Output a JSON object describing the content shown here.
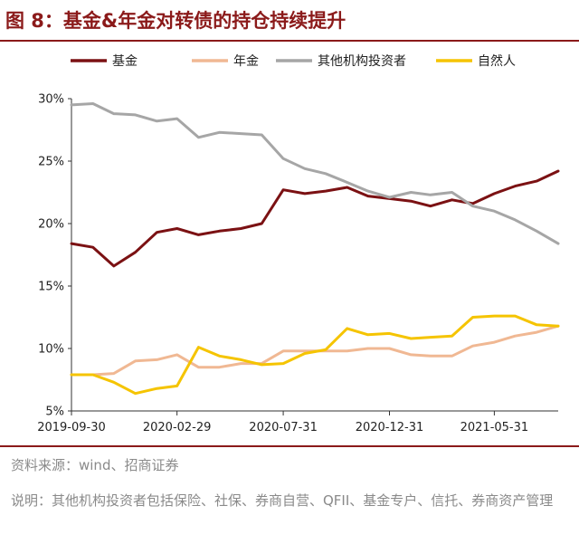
{
  "title": "图 8：基金&年金对转债的持仓持续提升",
  "source": "资料来源：wind、招商证券",
  "note": "说明：其他机构投资者包括保险、社保、券商自营、QFII、基金专户、信托、券商资产管理",
  "colors": {
    "fund": "#7b1113",
    "pension": "#f0b893",
    "other": "#a6a6a6",
    "individual": "#f5c400",
    "accent": "#8b1a1a"
  },
  "chart_data": {
    "type": "line",
    "title": "",
    "xlabel": "",
    "ylabel": "",
    "ylim": [
      5,
      30
    ],
    "yticks": [
      "5%",
      "10%",
      "15%",
      "20%",
      "25%",
      "30%"
    ],
    "x_range": [
      "2019-09-30",
      "2021-08-31"
    ],
    "xtick_labels": [
      "2019-09-30",
      "2020-02-29",
      "2020-07-31",
      "2020-12-31",
      "2021-05-31"
    ],
    "legend_position": "top",
    "grid": false,
    "x": [
      "2019-09-30",
      "2019-10-31",
      "2019-11-30",
      "2019-12-31",
      "2020-01-31",
      "2020-02-29",
      "2020-03-31",
      "2020-04-30",
      "2020-05-31",
      "2020-06-30",
      "2020-07-31",
      "2020-08-31",
      "2020-09-30",
      "2020-10-31",
      "2020-11-30",
      "2020-12-31",
      "2021-01-31",
      "2021-02-28",
      "2021-03-31",
      "2021-04-30",
      "2021-05-31",
      "2021-06-30",
      "2021-07-31",
      "2021-08-31"
    ],
    "series": [
      {
        "name": "基金",
        "values": [
          18.4,
          18.1,
          16.6,
          17.7,
          19.3,
          19.6,
          19.1,
          19.4,
          19.6,
          20.0,
          22.7,
          22.4,
          22.6,
          22.9,
          22.2,
          22.0,
          21.8,
          21.4,
          21.9,
          21.6,
          22.4,
          23.0,
          23.4,
          24.2
        ]
      },
      {
        "name": "年金",
        "values": [
          7.9,
          7.9,
          8.0,
          9.0,
          9.1,
          9.5,
          8.5,
          8.5,
          8.8,
          8.8,
          9.8,
          9.8,
          9.8,
          9.8,
          10.0,
          10.0,
          9.5,
          9.4,
          9.4,
          10.2,
          10.5,
          11.0,
          11.3,
          11.8
        ]
      },
      {
        "name": "其他机构投资者",
        "values": [
          29.5,
          29.6,
          28.8,
          28.7,
          28.2,
          28.4,
          26.9,
          27.3,
          27.2,
          27.1,
          25.2,
          24.4,
          24.0,
          23.3,
          22.6,
          22.1,
          22.5,
          22.3,
          22.5,
          21.4,
          21.0,
          20.3,
          19.4,
          18.4
        ]
      },
      {
        "name": "自然人",
        "values": [
          7.9,
          7.9,
          7.3,
          6.4,
          6.8,
          7.0,
          10.1,
          9.4,
          9.1,
          8.7,
          8.8,
          9.6,
          9.9,
          11.6,
          11.1,
          11.2,
          10.8,
          10.9,
          11.0,
          12.5,
          12.6,
          12.6,
          11.9,
          11.8
        ]
      }
    ]
  }
}
